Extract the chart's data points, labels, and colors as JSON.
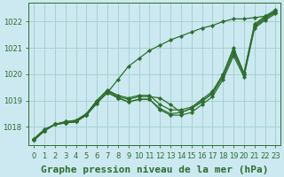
{
  "title": "Graphe pression niveau de la mer (hPa)",
  "bg_color": "#cce8f0",
  "grid_color": "#9ecfcc",
  "line_color": "#2d6e2d",
  "marker": "D",
  "markersize": 2.2,
  "linewidth": 0.9,
  "xlim": [
    -0.5,
    23.5
  ],
  "ylim": [
    1017.3,
    1022.7
  ],
  "yticks": [
    1018,
    1019,
    1020,
    1021,
    1022
  ],
  "xticks": [
    0,
    1,
    2,
    3,
    4,
    5,
    6,
    7,
    8,
    9,
    10,
    11,
    12,
    13,
    14,
    15,
    16,
    17,
    18,
    19,
    20,
    21,
    22,
    23
  ],
  "series": [
    [
      1017.5,
      1017.85,
      1018.1,
      1018.15,
      1018.2,
      1018.45,
      1018.9,
      1019.35,
      1019.1,
      1018.95,
      1019.05,
      1019.05,
      1018.65,
      1018.45,
      1018.45,
      1018.55,
      1018.85,
      1019.15,
      1019.8,
      1020.7,
      1019.9,
      1021.75,
      1022.05,
      1022.3
    ],
    [
      1017.5,
      1017.85,
      1018.1,
      1018.15,
      1018.2,
      1018.45,
      1018.95,
      1019.3,
      1019.1,
      1018.95,
      1019.05,
      1019.05,
      1018.7,
      1018.5,
      1018.55,
      1018.7,
      1019.0,
      1019.25,
      1019.9,
      1020.8,
      1020.0,
      1021.8,
      1022.1,
      1022.35
    ],
    [
      1017.55,
      1017.9,
      1018.1,
      1018.2,
      1018.25,
      1018.5,
      1019.0,
      1019.4,
      1019.15,
      1019.05,
      1019.15,
      1019.15,
      1019.1,
      1018.85,
      1018.55,
      1018.7,
      1018.95,
      1019.3,
      1020.0,
      1020.9,
      1020.0,
      1021.85,
      1022.15,
      1022.4
    ],
    [
      1017.55,
      1017.9,
      1018.1,
      1018.2,
      1018.25,
      1018.5,
      1019.0,
      1019.4,
      1019.2,
      1019.1,
      1019.2,
      1019.2,
      1018.85,
      1018.65,
      1018.65,
      1018.75,
      1019.05,
      1019.35,
      1020.0,
      1021.0,
      1020.05,
      1021.9,
      1022.2,
      1022.45
    ],
    [
      1017.5,
      1017.85,
      1018.1,
      1018.15,
      1018.2,
      1018.45,
      1018.9,
      1019.3,
      1019.8,
      1020.3,
      1020.6,
      1020.9,
      1021.1,
      1021.3,
      1021.45,
      1021.6,
      1021.75,
      1021.85,
      1022.0,
      1022.1,
      1022.1,
      1022.15,
      1022.2,
      1022.35
    ]
  ],
  "title_fontsize": 8,
  "tick_fontsize": 6,
  "xlabel_fontweight": "bold"
}
